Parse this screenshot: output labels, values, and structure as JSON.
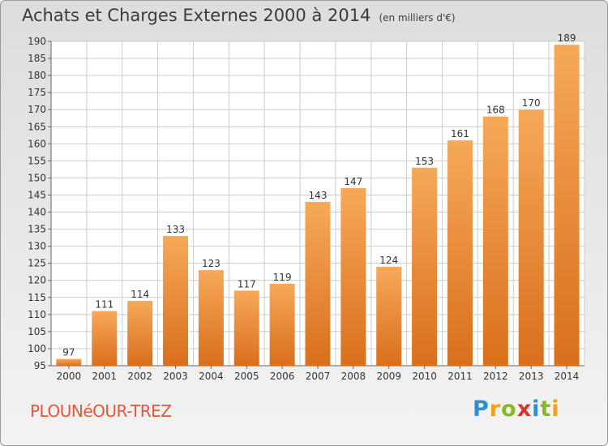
{
  "header": {
    "title": "Achats et Charges Externes 2000 à 2014",
    "unit": "(en milliers d'€)"
  },
  "commune": "PLOUNéOUR-TREZ",
  "logo": {
    "letters": [
      "P",
      "r",
      "o",
      "x",
      "i",
      "t",
      "i"
    ],
    "colors": [
      "#2f8fd0",
      "#f0a019",
      "#86b928",
      "#d9342b",
      "#2f8fd0",
      "#86b928",
      "#f0a019"
    ]
  },
  "colors": {
    "bar_light": "#f6a95a",
    "bar_dark": "#d96f1c",
    "grid": "#cccccc",
    "text": "#333333",
    "title": "#3c3c3c",
    "commune": "#e8553a"
  },
  "chart_data": {
    "type": "bar",
    "categories": [
      "2000",
      "2001",
      "2002",
      "2003",
      "2004",
      "2005",
      "2006",
      "2007",
      "2008",
      "2009",
      "2010",
      "2011",
      "2012",
      "2013",
      "2014"
    ],
    "values": [
      97,
      111,
      114,
      133,
      123,
      117,
      119,
      143,
      147,
      124,
      153,
      161,
      168,
      170,
      189
    ],
    "ylim": [
      95,
      190
    ],
    "yticks": [
      95,
      100,
      105,
      110,
      115,
      120,
      125,
      130,
      135,
      140,
      145,
      150,
      155,
      160,
      165,
      170,
      175,
      180,
      185,
      190
    ],
    "grid": true,
    "data_labels": true
  }
}
